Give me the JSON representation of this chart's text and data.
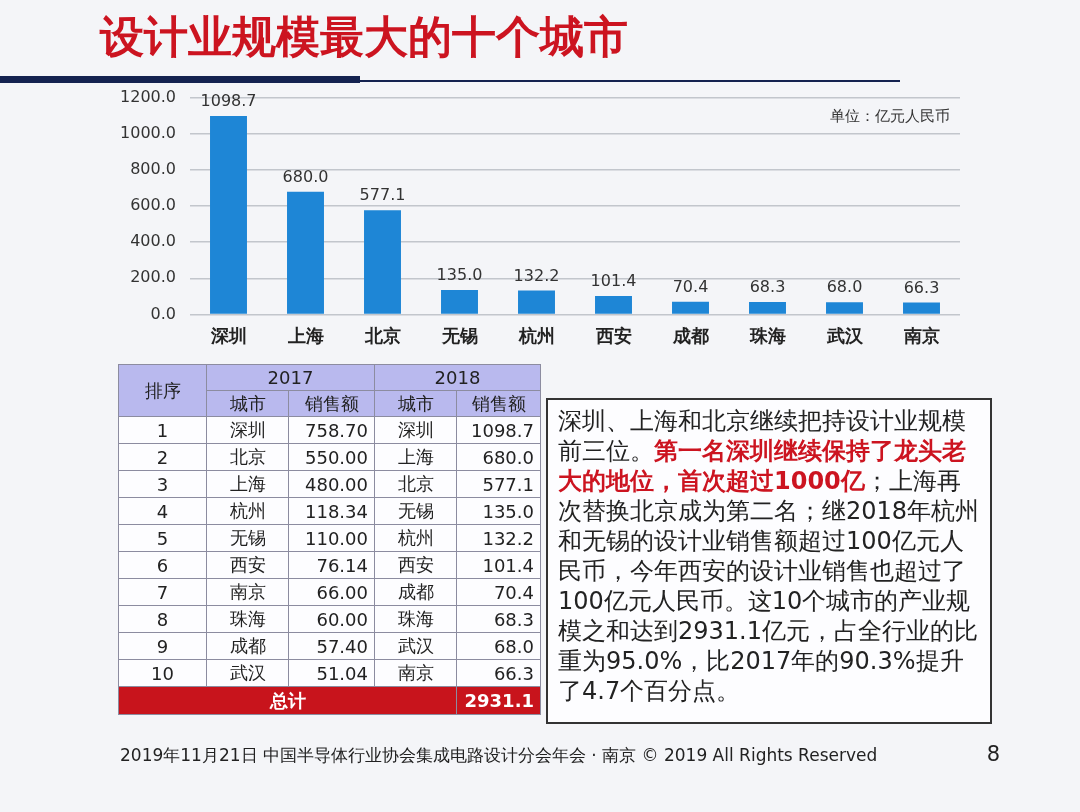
{
  "chart_data": [
    {
      "type": "bar",
      "title": "设计业规模最大的十个城市",
      "categories": [
        "深圳",
        "上海",
        "北京",
        "无锡",
        "杭州",
        "西安",
        "成都",
        "珠海",
        "武汉",
        "南京"
      ],
      "values": [
        1098.7,
        680.0,
        577.1,
        135.0,
        132.2,
        101.4,
        70.4,
        68.3,
        68.0,
        66.3
      ],
      "value_labels": [
        "1098.7",
        "680.0",
        "577.1",
        "135.0",
        "132.2",
        "101.4",
        "70.4",
        "68.3",
        "68.0",
        "66.3"
      ],
      "color": "#1e86d6",
      "ylim": [
        0,
        1200
      ],
      "yticks": [
        {
          "value": 0,
          "label": "0.0"
        },
        {
          "value": 200,
          "label": "200.0"
        },
        {
          "value": 400,
          "label": "400.0"
        },
        {
          "value": 600,
          "label": "600.0"
        },
        {
          "value": 800,
          "label": "800.0"
        },
        {
          "value": 1000,
          "label": "1000.0"
        },
        {
          "value": 1200,
          "label": "1200.0"
        }
      ],
      "grid": "y",
      "annotations": [
        "单位：亿元人民币",
        "2019年11月21日 中国半导体行业协会集成电路设计分会年会 · 南京 © 2019 All Rights Reserved",
        "8"
      ]
    },
    {
      "type": "heatmap",
      "ylabel": "排序",
      "annotations": [
        "2017",
        "2018"
      ],
      "categories": [
        "城市",
        "销售额",
        "城市",
        "销售额"
      ],
      "y_categories": [
        "1",
        "2",
        "3",
        "4",
        "5",
        "6",
        "7",
        "8",
        "9",
        "10",
        "总计"
      ],
      "cells": [
        [
          null,
          758.7,
          null,
          1098.7
        ],
        [
          null,
          550.0,
          null,
          680.0
        ],
        [
          null,
          480.0,
          null,
          577.1
        ],
        [
          null,
          118.34,
          null,
          135.0
        ],
        [
          null,
          110.0,
          null,
          132.2
        ],
        [
          null,
          76.14,
          null,
          101.4
        ],
        [
          null,
          66.0,
          null,
          70.4
        ],
        [
          null,
          60.0,
          null,
          68.3
        ],
        [
          null,
          57.4,
          null,
          68.0
        ],
        [
          null,
          51.04,
          null,
          66.3
        ],
        [
          null,
          null,
          null,
          2931.1
        ]
      ],
      "cell_labels": [
        [
          "深圳",
          "758.70",
          "深圳",
          "1098.7"
        ],
        [
          "北京",
          "550.00",
          "上海",
          "680.0"
        ],
        [
          "上海",
          "480.00",
          "北京",
          "577.1"
        ],
        [
          "杭州",
          "118.34",
          "无锡",
          "135.0"
        ],
        [
          "无锡",
          "110.00",
          "杭州",
          "132.2"
        ],
        [
          "西安",
          "76.14",
          "西安",
          "101.4"
        ],
        [
          "南京",
          "66.00",
          "成都",
          "70.4"
        ],
        [
          "珠海",
          "60.00",
          "珠海",
          "68.3"
        ],
        [
          "成都",
          "57.40",
          "武汉",
          "68.0"
        ],
        [
          "武汉",
          "51.04",
          "南京",
          "66.3"
        ],
        [
          null,
          null,
          null,
          "2931.1"
        ]
      ]
    },
    {
      "type": "other",
      "annotations": [
        "深圳、上海和北京继续把持设计业规模前三位。",
        "第一名深圳继续保持了龙头老大的地位，首次超过1000亿",
        "；上海再次替换北京成为第二名；继2018年杭州和无锡的设计业销售额超过100亿元人民币，今年西安的设计业销售也超过了100亿元人民币。这10个城市的产业规模之和达到2931.1亿元，占全行业的比重为95.0%，比2017年的90.3%提升了4.7个百分点。"
      ]
    }
  ]
}
